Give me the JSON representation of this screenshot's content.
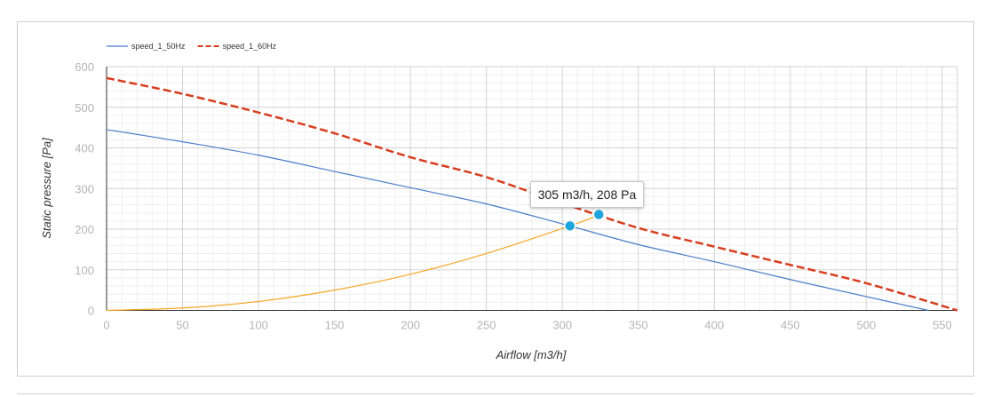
{
  "chart_data": {
    "type": "line",
    "xlabel": "Airflow [m3/h]",
    "ylabel": "Static pressure [Pa]",
    "xlim": [
      0,
      560
    ],
    "ylim": [
      0,
      600
    ],
    "x_ticks": [
      "0",
      "50",
      "100",
      "150",
      "200",
      "250",
      "300",
      "350",
      "400",
      "450",
      "500",
      "550"
    ],
    "y_ticks": [
      "0",
      "100",
      "200",
      "300",
      "400",
      "500",
      "600"
    ],
    "grid": true,
    "legend_position": "top-left",
    "series": [
      {
        "name": "speed_1_50Hz",
        "color": "#4a7cc9",
        "style": "solid",
        "x": [
          0,
          50,
          100,
          150,
          200,
          250,
          300,
          350,
          400,
          450,
          500,
          541
        ],
        "y": [
          445,
          415,
          382,
          342,
          302,
          262,
          213,
          162,
          120,
          76,
          34,
          0
        ]
      },
      {
        "name": "speed_1_60Hz",
        "color": "#d63d1d",
        "style": "dashed",
        "x": [
          0,
          50,
          100,
          150,
          200,
          250,
          300,
          350,
          400,
          450,
          500,
          560
        ],
        "y": [
          572,
          533,
          487,
          436,
          377,
          328,
          264,
          203,
          157,
          112,
          67,
          0
        ]
      },
      {
        "name": "",
        "color": "#f5a623",
        "style": "solid",
        "x": [
          0,
          50,
          100,
          150,
          200,
          250,
          305,
          324
        ],
        "y": [
          0,
          6,
          22,
          50,
          89,
          140,
          208,
          234
        ]
      }
    ],
    "markers": [
      {
        "x": 305,
        "y": 208,
        "color": "#1fa4dc"
      },
      {
        "x": 324,
        "y": 236,
        "color": "#1fa4dc"
      }
    ],
    "tooltip": "305 m3/h, 208 Pa"
  }
}
